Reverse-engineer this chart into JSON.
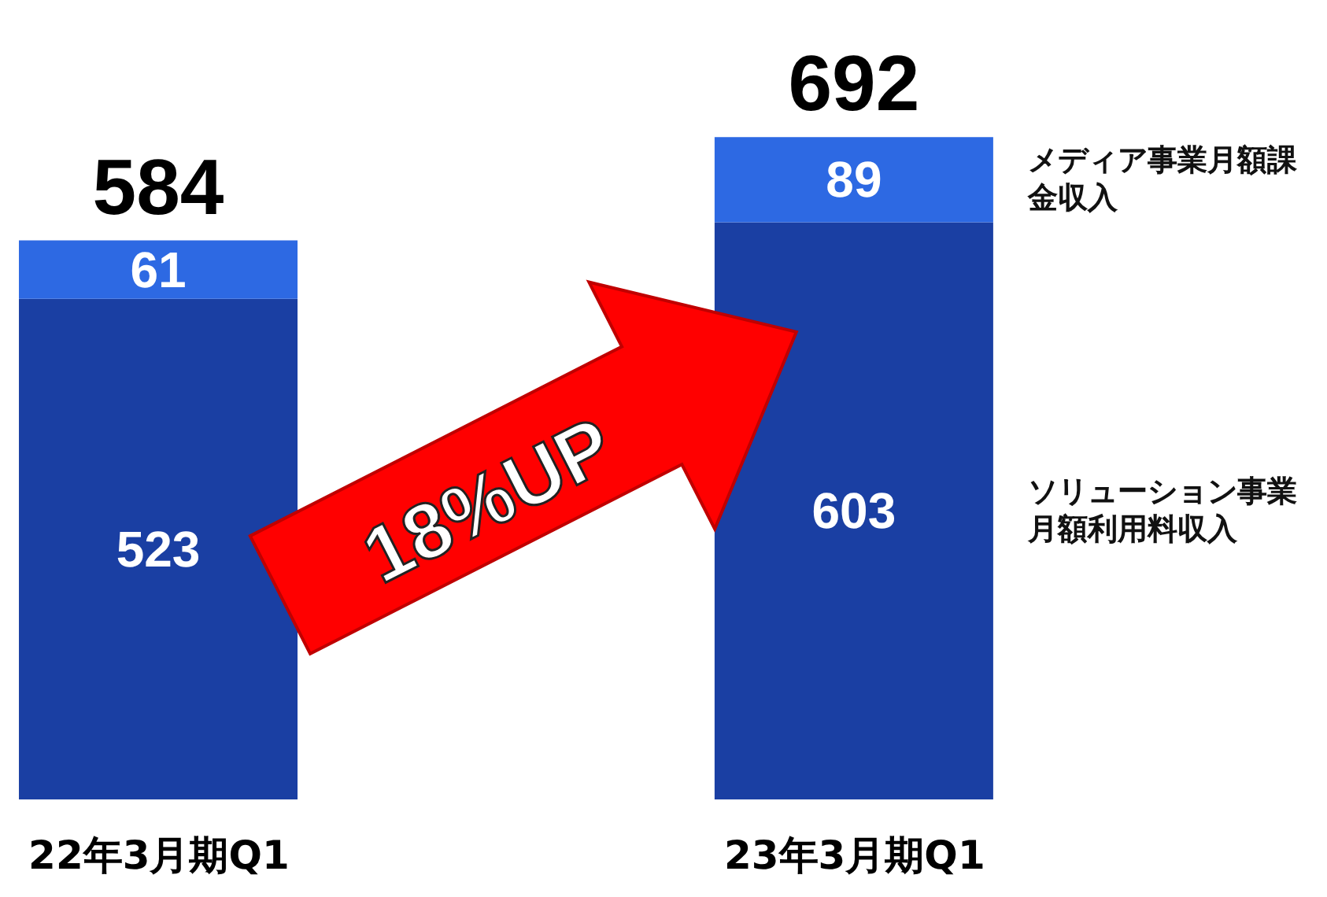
{
  "chart_data": {
    "type": "bar",
    "stacked": true,
    "categories": [
      "22年3月期Q1",
      "23年3月期Q1"
    ],
    "series": [
      {
        "name": "ソリューション事業月額利用料収入",
        "color": "#1a3fa3",
        "values": [
          523,
          603
        ]
      },
      {
        "name": "メディア事業月額課金収入",
        "color": "#2d69e3",
        "values": [
          61,
          89
        ]
      }
    ],
    "data_labels": true,
    "totals": [
      "584",
      "692"
    ],
    "annotations": [
      "18%UP"
    ]
  }
}
